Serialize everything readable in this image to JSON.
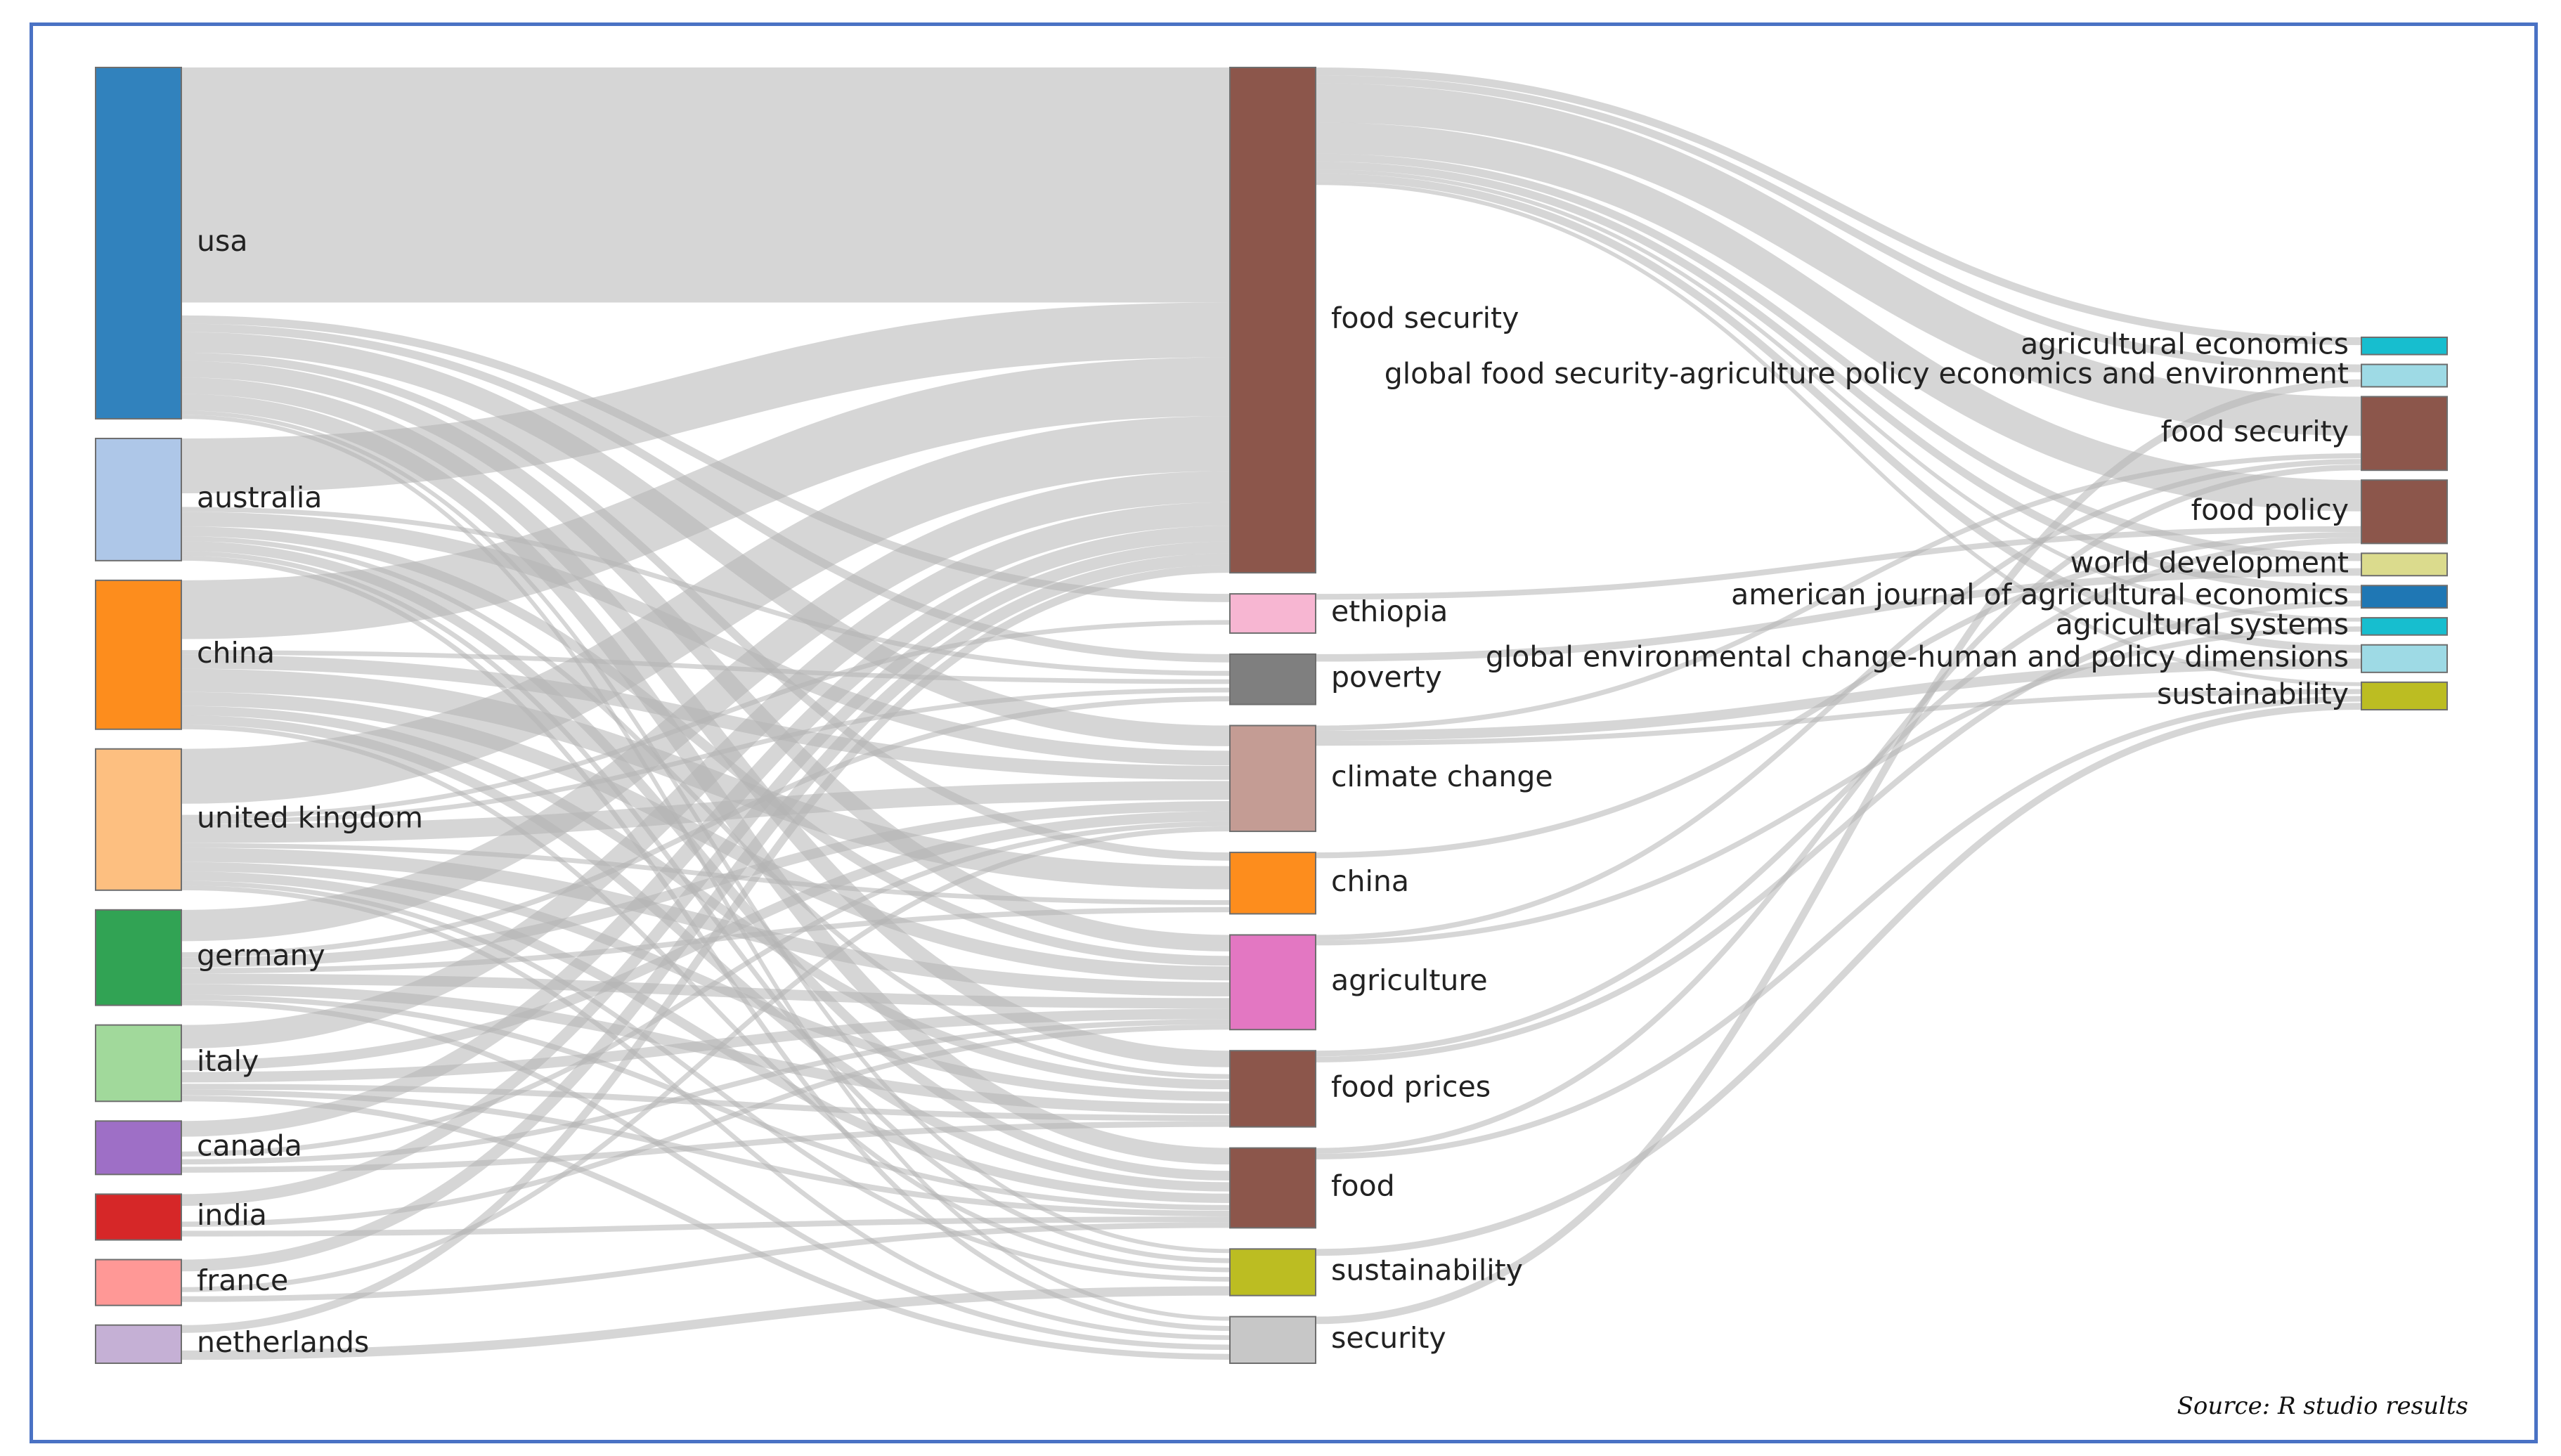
{
  "diagram": {
    "type": "sankey",
    "source_note": "Source: R studio results",
    "flow_color": "#b4b4b4",
    "columns": [
      {
        "key": "countries",
        "nodes": [
          {
            "id": "usa",
            "label": "usa",
            "color": "#3182bd"
          },
          {
            "id": "australia",
            "label": "australia",
            "color": "#aec7e8"
          },
          {
            "id": "china_c",
            "label": "china",
            "color": "#fd8d1d"
          },
          {
            "id": "uk",
            "label": "united kingdom",
            "color": "#fdbf80"
          },
          {
            "id": "germany",
            "label": "germany",
            "color": "#31a354"
          },
          {
            "id": "italy",
            "label": "italy",
            "color": "#a1d99b"
          },
          {
            "id": "canada",
            "label": "canada",
            "color": "#9e6fc6"
          },
          {
            "id": "india",
            "label": "india",
            "color": "#d62728"
          },
          {
            "id": "france",
            "label": "france",
            "color": "#ff9896"
          },
          {
            "id": "netherlands",
            "label": "netherlands",
            "color": "#c5b0d5"
          }
        ]
      },
      {
        "key": "keywords",
        "nodes": [
          {
            "id": "food_security_k",
            "label": "food security",
            "color": "#8c564b"
          },
          {
            "id": "ethiopia",
            "label": "ethiopia",
            "color": "#f7b6d2"
          },
          {
            "id": "poverty",
            "label": "poverty",
            "color": "#7f7f7f"
          },
          {
            "id": "climate_change",
            "label": "climate change",
            "color": "#c49c94"
          },
          {
            "id": "china_k",
            "label": "china",
            "color": "#fd8d1d"
          },
          {
            "id": "agriculture",
            "label": "agriculture",
            "color": "#e377c2"
          },
          {
            "id": "food_prices",
            "label": "food prices",
            "color": "#8c564b"
          },
          {
            "id": "food",
            "label": "food",
            "color": "#8c564b"
          },
          {
            "id": "sustainability_k",
            "label": "sustainability",
            "color": "#bcbd22"
          },
          {
            "id": "security",
            "label": "security",
            "color": "#c7c7c7"
          }
        ]
      },
      {
        "key": "journals",
        "nodes": [
          {
            "id": "agri_econ",
            "label": "agricultural economics",
            "color": "#17becf"
          },
          {
            "id": "gfs_agri",
            "label": "global food security-agriculture policy economics and environment",
            "color": "#9edae5"
          },
          {
            "id": "food_security_j",
            "label": "food security",
            "color": "#8c564b"
          },
          {
            "id": "food_policy",
            "label": "food policy",
            "color": "#8c564b"
          },
          {
            "id": "world_dev",
            "label": "world development",
            "color": "#dbdb8d"
          },
          {
            "id": "ajae",
            "label": "american journal of agricultural economics",
            "color": "#1f77b4"
          },
          {
            "id": "agri_systems",
            "label": "agricultural systems",
            "color": "#17becf"
          },
          {
            "id": "gec",
            "label": "global environmental change-human and policy dimensions",
            "color": "#9edae5"
          },
          {
            "id": "sustainability_j",
            "label": "sustainability",
            "color": "#bcbd22"
          }
        ]
      }
    ],
    "links": [
      {
        "source": "usa",
        "target": "food_security_k",
        "value": 60
      },
      {
        "source": "usa",
        "target": "climate_change",
        "value": 5
      },
      {
        "source": "usa",
        "target": "agriculture",
        "value": 4
      },
      {
        "source": "usa",
        "target": "food_prices",
        "value": 4
      },
      {
        "source": "usa",
        "target": "food",
        "value": 4
      },
      {
        "source": "usa",
        "target": "ethiopia",
        "value": 2
      },
      {
        "source": "usa",
        "target": "poverty",
        "value": 2
      },
      {
        "source": "usa",
        "target": "china_k",
        "value": 2
      },
      {
        "source": "usa",
        "target": "sustainability_k",
        "value": 1
      },
      {
        "source": "usa",
        "target": "security",
        "value": 1
      },
      {
        "source": "australia",
        "target": "food_security_k",
        "value": 14
      },
      {
        "source": "australia",
        "target": "climate_change",
        "value": 3
      },
      {
        "source": "australia",
        "target": "agriculture",
        "value": 2
      },
      {
        "source": "australia",
        "target": "food",
        "value": 2
      },
      {
        "source": "australia",
        "target": "poverty",
        "value": 1
      },
      {
        "source": "australia",
        "target": "security",
        "value": 1
      },
      {
        "source": "australia",
        "target": "food_prices",
        "value": 1
      },
      {
        "source": "australia",
        "target": "sustainability_k",
        "value": 1
      },
      {
        "source": "china_c",
        "target": "food_security_k",
        "value": 15
      },
      {
        "source": "china_c",
        "target": "china_k",
        "value": 5
      },
      {
        "source": "china_c",
        "target": "climate_change",
        "value": 3
      },
      {
        "source": "china_c",
        "target": "agriculture",
        "value": 3
      },
      {
        "source": "china_c",
        "target": "food",
        "value": 2
      },
      {
        "source": "china_c",
        "target": "food_prices",
        "value": 2
      },
      {
        "source": "china_c",
        "target": "poverty",
        "value": 1
      },
      {
        "source": "china_c",
        "target": "sustainability_k",
        "value": 1
      },
      {
        "source": "uk",
        "target": "food_security_k",
        "value": 14
      },
      {
        "source": "uk",
        "target": "climate_change",
        "value": 4
      },
      {
        "source": "uk",
        "target": "agriculture",
        "value": 3
      },
      {
        "source": "uk",
        "target": "food_prices",
        "value": 2
      },
      {
        "source": "uk",
        "target": "food",
        "value": 2
      },
      {
        "source": "uk",
        "target": "ethiopia",
        "value": 1
      },
      {
        "source": "uk",
        "target": "poverty",
        "value": 1
      },
      {
        "source": "uk",
        "target": "china_k",
        "value": 1
      },
      {
        "source": "uk",
        "target": "sustainability_k",
        "value": 1
      },
      {
        "source": "uk",
        "target": "security",
        "value": 1
      },
      {
        "source": "germany",
        "target": "food_security_k",
        "value": 8
      },
      {
        "source": "germany",
        "target": "climate_change",
        "value": 2
      },
      {
        "source": "germany",
        "target": "agriculture",
        "value": 2
      },
      {
        "source": "germany",
        "target": "food_prices",
        "value": 2
      },
      {
        "source": "germany",
        "target": "food",
        "value": 1
      },
      {
        "source": "germany",
        "target": "poverty",
        "value": 1
      },
      {
        "source": "germany",
        "target": "china_k",
        "value": 1
      },
      {
        "source": "germany",
        "target": "security",
        "value": 1
      },
      {
        "source": "italy",
        "target": "food_security_k",
        "value": 6
      },
      {
        "source": "italy",
        "target": "climate_change",
        "value": 2
      },
      {
        "source": "italy",
        "target": "agriculture",
        "value": 2
      },
      {
        "source": "italy",
        "target": "food_prices",
        "value": 1
      },
      {
        "source": "italy",
        "target": "food",
        "value": 1
      },
      {
        "source": "italy",
        "target": "security",
        "value": 1
      },
      {
        "source": "canada",
        "target": "food_security_k",
        "value": 4
      },
      {
        "source": "canada",
        "target": "agriculture",
        "value": 1
      },
      {
        "source": "canada",
        "target": "food_prices",
        "value": 1
      },
      {
        "source": "canada",
        "target": "climate_change",
        "value": 1
      },
      {
        "source": "india",
        "target": "food_security_k",
        "value": 3
      },
      {
        "source": "india",
        "target": "food",
        "value": 1
      },
      {
        "source": "india",
        "target": "agriculture",
        "value": 1
      },
      {
        "source": "france",
        "target": "food_security_k",
        "value": 3
      },
      {
        "source": "france",
        "target": "food",
        "value": 1
      },
      {
        "source": "france",
        "target": "climate_change",
        "value": 1
      },
      {
        "source": "netherlands",
        "target": "food_security_k",
        "value": 2
      },
      {
        "source": "netherlands",
        "target": "sustainability_k",
        "value": 1
      },
      {
        "source": "food_security_k",
        "target": "food_security_j",
        "value": 10
      },
      {
        "source": "food_security_k",
        "target": "food_policy",
        "value": 8
      },
      {
        "source": "food_security_k",
        "target": "agri_econ",
        "value": 2
      },
      {
        "source": "food_security_k",
        "target": "gfs_agri",
        "value": 2
      },
      {
        "source": "food_security_k",
        "target": "world_dev",
        "value": 2
      },
      {
        "source": "food_security_k",
        "target": "ajae",
        "value": 2
      },
      {
        "source": "food_security_k",
        "target": "agri_systems",
        "value": 1
      },
      {
        "source": "food_security_k",
        "target": "gec",
        "value": 2
      },
      {
        "source": "food_security_k",
        "target": "sustainability_j",
        "value": 1
      },
      {
        "source": "ethiopia",
        "target": "food_policy",
        "value": 1
      },
      {
        "source": "poverty",
        "target": "world_dev",
        "value": 1
      },
      {
        "source": "climate_change",
        "target": "gec",
        "value": 2
      },
      {
        "source": "climate_change",
        "target": "food_security_j",
        "value": 1
      },
      {
        "source": "climate_change",
        "target": "sustainability_j",
        "value": 1
      },
      {
        "source": "china_k",
        "target": "food_policy",
        "value": 1
      },
      {
        "source": "agriculture",
        "target": "agri_systems",
        "value": 1
      },
      {
        "source": "agriculture",
        "target": "food_security_j",
        "value": 1
      },
      {
        "source": "food_prices",
        "target": "food_policy",
        "value": 1
      },
      {
        "source": "food_prices",
        "target": "ajae",
        "value": 1
      },
      {
        "source": "food",
        "target": "food_security_j",
        "value": 1
      },
      {
        "source": "food",
        "target": "sustainability_j",
        "value": 1
      },
      {
        "source": "sustainability_k",
        "target": "sustainability_j",
        "value": 1
      },
      {
        "source": "security",
        "target": "gfs_agri",
        "value": 1
      }
    ]
  }
}
